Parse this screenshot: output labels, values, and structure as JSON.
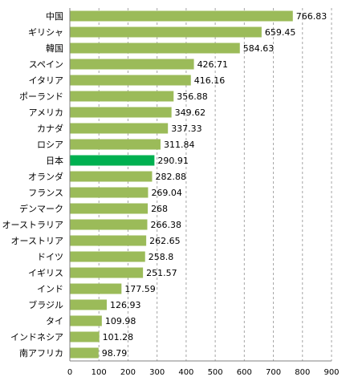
{
  "chart_data": {
    "type": "bar",
    "orientation": "horizontal",
    "title": "",
    "xlabel": "",
    "ylabel": "",
    "xlim": [
      0,
      900
    ],
    "xticks": [
      0,
      100,
      200,
      300,
      400,
      500,
      600,
      700,
      800,
      900
    ],
    "grid": "vertical dashed",
    "legend": "none",
    "categories": [
      "中国",
      "ギリシャ",
      "韓国",
      "スペイン",
      "イタリア",
      "ポーランド",
      "アメリカ",
      "カナダ",
      "ロシア",
      "日本",
      "オランダ",
      "フランス",
      "デンマーク",
      "オーストラリア",
      "オーストリア",
      "ドイツ",
      "イギリス",
      "インド",
      "ブラジル",
      "タイ",
      "インドネシア",
      "南アフリカ"
    ],
    "values": [
      766.83,
      659.45,
      584.63,
      426.71,
      416.16,
      356.88,
      349.62,
      337.33,
      311.84,
      290.91,
      282.88,
      269.04,
      268,
      266.38,
      262.65,
      258.8,
      251.57,
      177.59,
      126.93,
      109.98,
      101.28,
      98.79
    ],
    "value_labels": [
      "766.83",
      "659.45",
      "584.63",
      "426.71",
      "416.16",
      "356.88",
      "349.62",
      "337.33",
      "311.84",
      "290.91",
      "282.88",
      "269.04",
      "268",
      "266.38",
      "262.65",
      "258.8",
      "251.57",
      "177.59",
      "126.93",
      "109.98",
      "101.28",
      "98.79"
    ],
    "highlight_category": "日本",
    "colors": {
      "bar": "#9bbb59",
      "highlight": "#00b050",
      "grid": "#a6a6a6",
      "axis": "#808080"
    }
  }
}
